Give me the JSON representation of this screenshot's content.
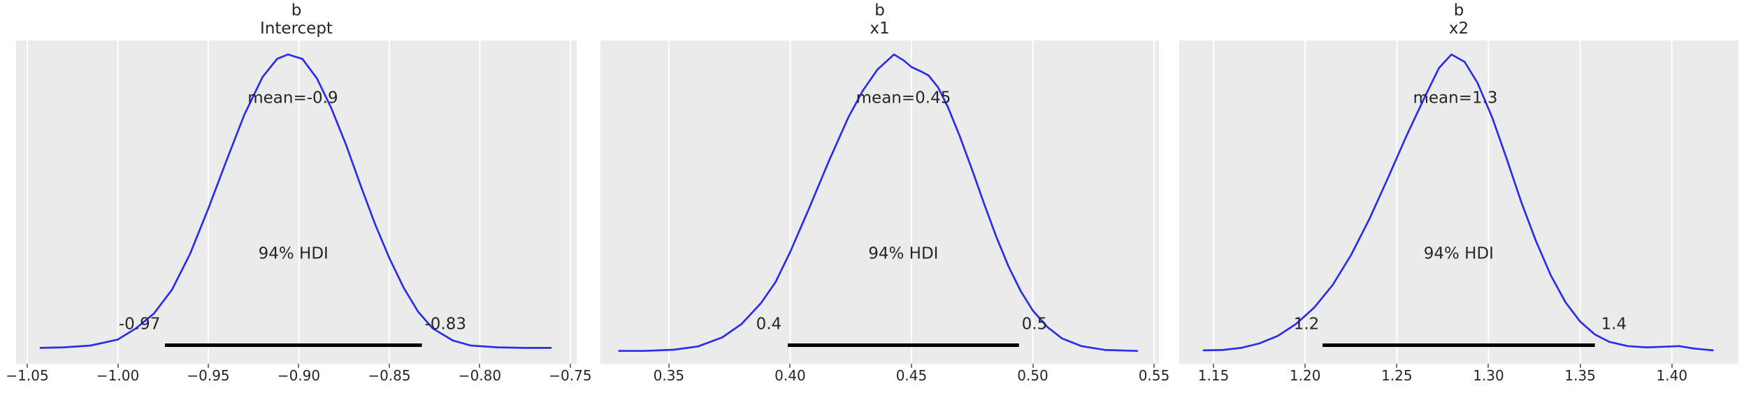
{
  "figure": {
    "background": "#ffffff",
    "panel_background": "#ebebeb",
    "grid_color": "#ffffff",
    "curve_color": "#2a2eec",
    "hdi_bar_color": "#000000",
    "text_color": "#262626",
    "tick_mark_color": "#767676"
  },
  "chart_data": [
    {
      "type": "kde",
      "title_line1": "b",
      "title_line2": "Intercept",
      "xlabel": "",
      "grid": "vertical-white",
      "xlim": [
        -1.0562,
        -0.7465
      ],
      "ticks": [
        {
          "v": -1.05,
          "label": "−1.05"
        },
        {
          "v": -1.0,
          "label": "−1.00"
        },
        {
          "v": -0.95,
          "label": "−0.95"
        },
        {
          "v": -0.9,
          "label": "−0.90"
        },
        {
          "v": -0.85,
          "label": "−0.85"
        },
        {
          "v": -0.8,
          "label": "−0.80"
        },
        {
          "v": -0.75,
          "label": "−0.75"
        }
      ],
      "mean_value": -0.9,
      "mean_label": "mean=-0.9",
      "mean_label_x": -0.9033,
      "hdi_prob": 0.94,
      "hdi_label": "94% HDI",
      "hdi_lower": -0.97,
      "hdi_upper": -0.83,
      "hdi_lower_label": "-0.97",
      "hdi_upper_label": "-0.83",
      "hdi_line": [
        -0.974,
        -0.832
      ],
      "hdi_lower_label_x": -0.988,
      "hdi_upper_label_x": -0.819,
      "curve": [
        [
          -1.0427,
          0.02
        ],
        [
          -1.03,
          0.022
        ],
        [
          -1.015,
          0.028
        ],
        [
          -1.0,
          0.048
        ],
        [
          -0.99,
          0.085
        ],
        [
          -0.98,
          0.135
        ],
        [
          -0.97,
          0.215
        ],
        [
          -0.96,
          0.335
        ],
        [
          -0.95,
          0.485
        ],
        [
          -0.94,
          0.645
        ],
        [
          -0.93,
          0.8
        ],
        [
          -0.92,
          0.925
        ],
        [
          -0.912,
          0.985
        ],
        [
          -0.906,
          1.0
        ],
        [
          -0.898,
          0.985
        ],
        [
          -0.89,
          0.92
        ],
        [
          -0.882,
          0.82
        ],
        [
          -0.874,
          0.7
        ],
        [
          -0.866,
          0.565
        ],
        [
          -0.858,
          0.435
        ],
        [
          -0.85,
          0.32
        ],
        [
          -0.842,
          0.22
        ],
        [
          -0.834,
          0.14
        ],
        [
          -0.826,
          0.085
        ],
        [
          -0.815,
          0.045
        ],
        [
          -0.805,
          0.028
        ],
        [
          -0.79,
          0.022
        ],
        [
          -0.775,
          0.02
        ],
        [
          -0.7608,
          0.02
        ]
      ]
    },
    {
      "type": "kde",
      "title_line1": "b",
      "title_line2": "x1",
      "xlabel": "",
      "grid": "vertical-white",
      "xlim": [
        0.3218,
        0.552
      ],
      "ticks": [
        {
          "v": 0.35,
          "label": "0.35"
        },
        {
          "v": 0.4,
          "label": "0.40"
        },
        {
          "v": 0.45,
          "label": "0.45"
        },
        {
          "v": 0.5,
          "label": "0.50"
        },
        {
          "v": 0.55,
          "label": "0.55"
        }
      ],
      "mean_value": 0.45,
      "mean_label": "mean=0.45",
      "mean_label_x": 0.4467,
      "hdi_prob": 0.94,
      "hdi_label": "94% HDI",
      "hdi_lower": 0.4,
      "hdi_upper": 0.5,
      "hdi_lower_label": "0.4",
      "hdi_upper_label": "0.5",
      "hdi_line": [
        0.399,
        0.4943
      ],
      "hdi_lower_label_x": 0.3912,
      "hdi_upper_label_x": 0.5007,
      "curve": [
        [
          0.3295,
          0.01
        ],
        [
          0.34,
          0.01
        ],
        [
          0.352,
          0.014
        ],
        [
          0.362,
          0.025
        ],
        [
          0.372,
          0.055
        ],
        [
          0.38,
          0.1
        ],
        [
          0.388,
          0.17
        ],
        [
          0.394,
          0.24
        ],
        [
          0.4,
          0.34
        ],
        [
          0.408,
          0.49
        ],
        [
          0.416,
          0.645
        ],
        [
          0.424,
          0.79
        ],
        [
          0.43,
          0.88
        ],
        [
          0.436,
          0.95
        ],
        [
          0.4428,
          1.0
        ],
        [
          0.4468,
          0.98
        ],
        [
          0.45,
          0.958
        ],
        [
          0.4535,
          0.945
        ],
        [
          0.457,
          0.93
        ],
        [
          0.461,
          0.89
        ],
        [
          0.465,
          0.825
        ],
        [
          0.47,
          0.725
        ],
        [
          0.475,
          0.615
        ],
        [
          0.48,
          0.5
        ],
        [
          0.485,
          0.39
        ],
        [
          0.49,
          0.292
        ],
        [
          0.495,
          0.21
        ],
        [
          0.5,
          0.145
        ],
        [
          0.506,
          0.09
        ],
        [
          0.512,
          0.052
        ],
        [
          0.52,
          0.026
        ],
        [
          0.53,
          0.013
        ],
        [
          0.543,
          0.01
        ]
      ]
    },
    {
      "type": "kde",
      "title_line1": "b",
      "title_line2": "x2",
      "xlabel": "",
      "grid": "vertical-white",
      "xlim": [
        1.1313,
        1.4363
      ],
      "ticks": [
        {
          "v": 1.15,
          "label": "1.15"
        },
        {
          "v": 1.2,
          "label": "1.20"
        },
        {
          "v": 1.25,
          "label": "1.25"
        },
        {
          "v": 1.3,
          "label": "1.30"
        },
        {
          "v": 1.35,
          "label": "1.35"
        },
        {
          "v": 1.4,
          "label": "1.40"
        }
      ],
      "mean_value": 1.3,
      "mean_label": "mean=1.3",
      "mean_label_x": 1.2819,
      "hdi_prob": 0.94,
      "hdi_label": "94% HDI",
      "hdi_lower": 1.2,
      "hdi_upper": 1.4,
      "hdi_lower_label": "1.2",
      "hdi_upper_label": "1.4",
      "hdi_line": [
        1.2095,
        1.358
      ],
      "hdi_lower_label_x": 1.2007,
      "hdi_upper_label_x": 1.3684,
      "curve": [
        [
          1.1447,
          0.012
        ],
        [
          1.155,
          0.013
        ],
        [
          1.165,
          0.02
        ],
        [
          1.175,
          0.035
        ],
        [
          1.185,
          0.06
        ],
        [
          1.195,
          0.1
        ],
        [
          1.205,
          0.155
        ],
        [
          1.215,
          0.23
        ],
        [
          1.225,
          0.33
        ],
        [
          1.235,
          0.45
        ],
        [
          1.245,
          0.585
        ],
        [
          1.255,
          0.725
        ],
        [
          1.265,
          0.855
        ],
        [
          1.273,
          0.955
        ],
        [
          1.2798,
          1.0
        ],
        [
          1.287,
          0.975
        ],
        [
          1.294,
          0.905
        ],
        [
          1.302,
          0.79
        ],
        [
          1.31,
          0.65
        ],
        [
          1.318,
          0.505
        ],
        [
          1.326,
          0.375
        ],
        [
          1.334,
          0.262
        ],
        [
          1.342,
          0.172
        ],
        [
          1.35,
          0.108
        ],
        [
          1.358,
          0.065
        ],
        [
          1.366,
          0.04
        ],
        [
          1.376,
          0.026
        ],
        [
          1.386,
          0.022
        ],
        [
          1.396,
          0.024
        ],
        [
          1.404,
          0.026
        ],
        [
          1.412,
          0.018
        ],
        [
          1.4224,
          0.012
        ]
      ]
    }
  ]
}
